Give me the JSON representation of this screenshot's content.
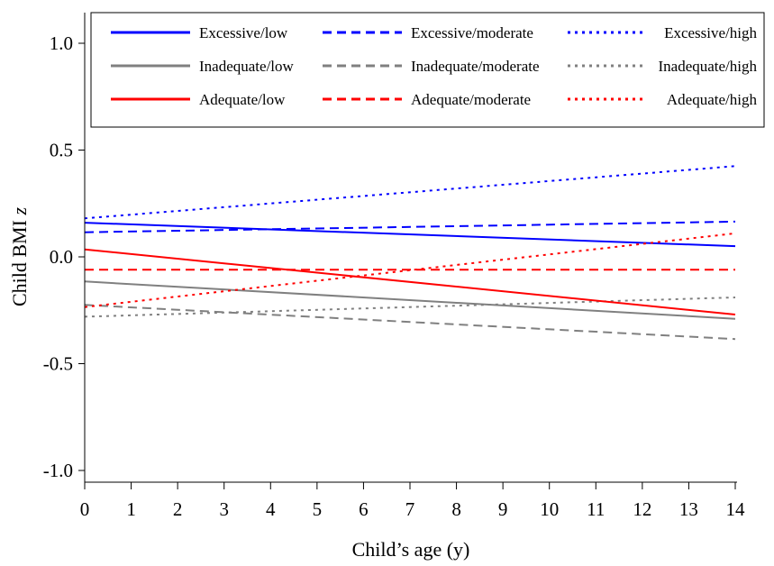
{
  "chart_data": {
    "type": "line",
    "title": "",
    "xlabel": "Child’s age (y)",
    "ylabel_main": "Child BMI ",
    "ylabel_italic": "z",
    "xlim": [
      0,
      14
    ],
    "ylim": [
      -1.05,
      1.05
    ],
    "xticks": [
      0,
      1,
      2,
      3,
      4,
      5,
      6,
      7,
      8,
      9,
      10,
      11,
      12,
      13,
      14
    ],
    "yticks": [
      {
        "value": 1.0,
        "label": "1.0"
      },
      {
        "value": 0.5,
        "label": "0.5"
      },
      {
        "value": 0.0,
        "label": "0.0"
      },
      {
        "value": -0.5,
        "label": "-0.5"
      },
      {
        "value": -1.0,
        "label": "-1.0"
      }
    ],
    "grid": false,
    "legend_position": "top",
    "legend_columns": 3,
    "series": [
      {
        "name": "Excessive/low",
        "color": "#0000ff",
        "style": "solid",
        "x": [
          0,
          14
        ],
        "y": [
          0.16,
          0.05
        ]
      },
      {
        "name": "Excessive/moderate",
        "color": "#0000ff",
        "style": "dashed",
        "x": [
          0,
          14
        ],
        "y": [
          0.115,
          0.165
        ]
      },
      {
        "name": "Excessive/high",
        "color": "#0000ff",
        "style": "dotted",
        "x": [
          0,
          14
        ],
        "y": [
          0.18,
          0.425
        ]
      },
      {
        "name": "Inadequate/low",
        "color": "#808080",
        "style": "solid",
        "x": [
          0,
          14
        ],
        "y": [
          -0.115,
          -0.29
        ]
      },
      {
        "name": "Inadequate/moderate",
        "color": "#808080",
        "style": "dashed",
        "x": [
          0,
          14
        ],
        "y": [
          -0.225,
          -0.385
        ]
      },
      {
        "name": "Inadequate/high",
        "color": "#808080",
        "style": "dotted",
        "x": [
          0,
          14
        ],
        "y": [
          -0.28,
          -0.19
        ]
      },
      {
        "name": "Adequate/low",
        "color": "#ff0000",
        "style": "solid",
        "x": [
          0,
          14
        ],
        "y": [
          0.035,
          -0.27
        ]
      },
      {
        "name": "Adequate/moderate",
        "color": "#ff0000",
        "style": "dashed",
        "x": [
          0,
          14
        ],
        "y": [
          -0.06,
          -0.06
        ]
      },
      {
        "name": "Adequate/high",
        "color": "#ff0000",
        "style": "dotted",
        "x": [
          0,
          14
        ],
        "y": [
          -0.235,
          0.11
        ]
      }
    ]
  }
}
